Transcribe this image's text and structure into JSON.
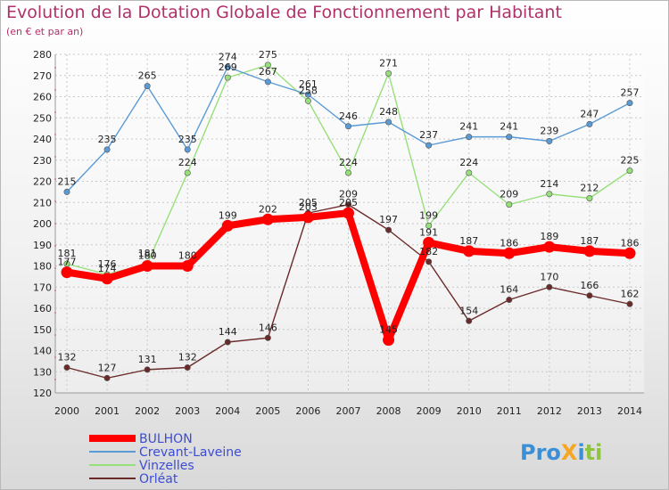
{
  "chart_data": {
    "type": "line",
    "title": "Evolution de la Dotation Globale de Fonctionnement par Habitant",
    "subtitle": "(en € et par an)",
    "xlabel": "",
    "ylabel": "",
    "x": [
      "2000",
      "2001",
      "2002",
      "2003",
      "2004",
      "2005",
      "2006",
      "2007",
      "2008",
      "2009",
      "2010",
      "2011",
      "2012",
      "2013",
      "2014"
    ],
    "ylim": [
      120,
      280
    ],
    "yticks": [
      120,
      130,
      140,
      150,
      160,
      170,
      180,
      190,
      200,
      210,
      220,
      230,
      240,
      250,
      260,
      270,
      280
    ],
    "grid": true,
    "legend_position": "bottom-left",
    "series": [
      {
        "name": "BULHON",
        "color": "#ff0000",
        "values": [
          177,
          174,
          180,
          180,
          199,
          202,
          203,
          205,
          145,
          191,
          187,
          186,
          189,
          187,
          186
        ]
      },
      {
        "name": "Crevant-Laveine",
        "color": "#5b9bd5",
        "values": [
          215,
          235,
          265,
          235,
          274,
          267,
          261,
          246,
          248,
          237,
          241,
          241,
          239,
          247,
          257
        ]
      },
      {
        "name": "Vinzelles",
        "color": "#96e07a",
        "values": [
          181,
          176,
          181,
          224,
          269,
          275,
          258,
          224,
          271,
          199,
          224,
          209,
          214,
          212,
          225
        ]
      },
      {
        "name": "Orléat",
        "color": "#6b2a2a",
        "values": [
          132,
          127,
          131,
          132,
          144,
          146,
          205,
          209,
          197,
          182,
          154,
          164,
          170,
          166,
          162
        ]
      }
    ]
  },
  "logo": {
    "text": "ProXiti"
  }
}
